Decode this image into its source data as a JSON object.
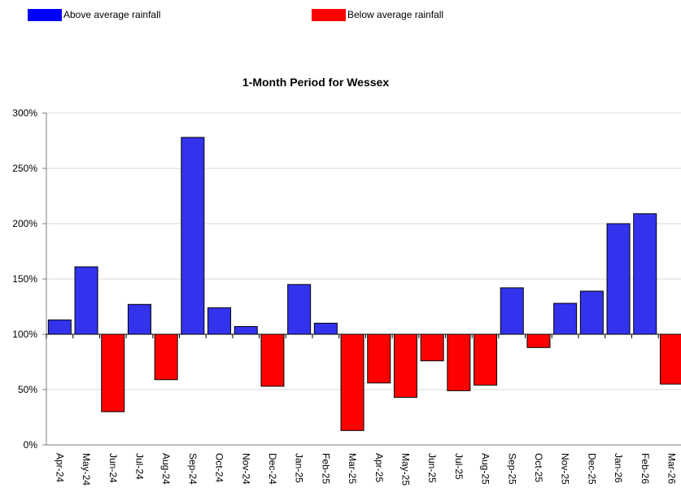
{
  "legend": [
    {
      "label": "Above average rainfall",
      "color": "#0000ff"
    },
    {
      "label": "Below average rainfall",
      "color": "#ff0000"
    }
  ],
  "chart_data": {
    "type": "bar",
    "title": "1-Month Period for Wessex",
    "xlabel": "",
    "ylabel": "",
    "baseline": 100,
    "ylim": [
      0,
      300
    ],
    "yticks": [
      0,
      50,
      100,
      150,
      200,
      250,
      300
    ],
    "ytick_labels": [
      "0%",
      "50%",
      "100%",
      "150%",
      "200%",
      "250%",
      "300%"
    ],
    "grid": true,
    "legend_position": "top",
    "above_color": "#3333ee",
    "below_color": "#ff0000",
    "categories": [
      "Apr-24",
      "May-24",
      "Jun-24",
      "Jul-24",
      "Aug-24",
      "Sep-24",
      "Oct-24",
      "Nov-24",
      "Dec-24",
      "Jan-25",
      "Feb-25",
      "Mar-25",
      "Apr-25",
      "May-25",
      "Jun-25",
      "Jul-25",
      "Aug-25",
      "Sep-25",
      "Oct-25",
      "Nov-25",
      "Dec-25",
      "Jan-26",
      "Feb-26",
      "Mar-26"
    ],
    "values": [
      113,
      161,
      30,
      127,
      59,
      278,
      124,
      107,
      53,
      145,
      110,
      13,
      56,
      43,
      76,
      49,
      54,
      142,
      88,
      128,
      139,
      200,
      209,
      55
    ]
  }
}
